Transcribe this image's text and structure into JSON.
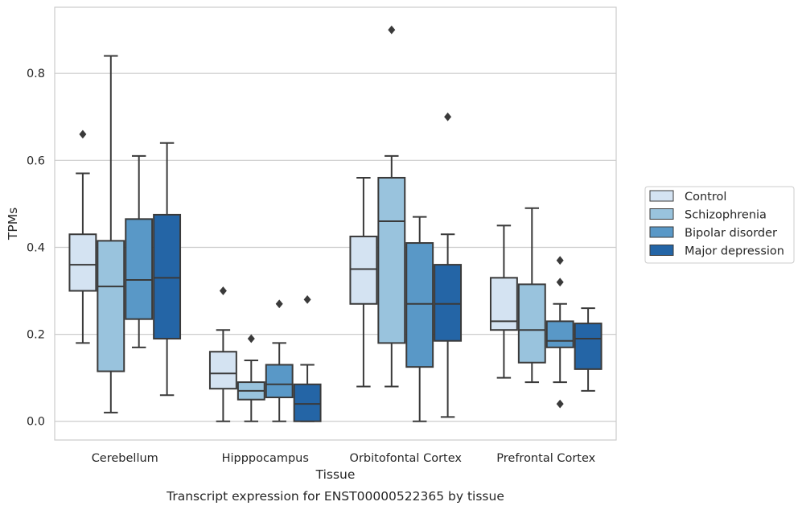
{
  "chart_data": {
    "type": "boxplot",
    "caption": "Transcript expression for ENST00000522365 by tissue",
    "xlabel": "Tissue",
    "ylabel": "TPMs",
    "ylim": [
      -0.043,
      0.952
    ],
    "yticks": [
      0.0,
      0.2,
      0.4,
      0.6,
      0.8
    ],
    "ytick_labels": [
      "0.0",
      "0.2",
      "0.4",
      "0.6",
      "0.8"
    ],
    "grid": "horizontal",
    "legend_position": "right",
    "categories": [
      "Cerebellum",
      "Hipppocampus",
      "Orbitofontal Cortex",
      "Prefrontal Cortex"
    ],
    "series": [
      {
        "name": "Control",
        "color": "#d4e3f2",
        "boxes": [
          {
            "whislo": 0.18,
            "q1": 0.3,
            "med": 0.36,
            "q3": 0.43,
            "whishi": 0.57,
            "fliers": [
              0.66
            ]
          },
          {
            "whislo": 0.0,
            "q1": 0.075,
            "med": 0.11,
            "q3": 0.16,
            "whishi": 0.21,
            "fliers": [
              0.3
            ]
          },
          {
            "whislo": 0.08,
            "q1": 0.27,
            "med": 0.35,
            "q3": 0.425,
            "whishi": 0.56,
            "fliers": []
          },
          {
            "whislo": 0.1,
            "q1": 0.21,
            "med": 0.23,
            "q3": 0.33,
            "whishi": 0.45,
            "fliers": []
          }
        ]
      },
      {
        "name": "Schizophrenia",
        "color": "#99c3dd",
        "boxes": [
          {
            "whislo": 0.02,
            "q1": 0.115,
            "med": 0.31,
            "q3": 0.415,
            "whishi": 0.84,
            "fliers": []
          },
          {
            "whislo": 0.0,
            "q1": 0.05,
            "med": 0.07,
            "q3": 0.09,
            "whishi": 0.14,
            "fliers": [
              0.19
            ]
          },
          {
            "whislo": 0.08,
            "q1": 0.18,
            "med": 0.46,
            "q3": 0.56,
            "whishi": 0.61,
            "fliers": [
              0.9
            ]
          },
          {
            "whislo": 0.09,
            "q1": 0.135,
            "med": 0.21,
            "q3": 0.315,
            "whishi": 0.49,
            "fliers": []
          }
        ]
      },
      {
        "name": "Bipolar disorder",
        "color": "#5998c7",
        "boxes": [
          {
            "whislo": 0.17,
            "q1": 0.235,
            "med": 0.325,
            "q3": 0.465,
            "whishi": 0.61,
            "fliers": []
          },
          {
            "whislo": 0.0,
            "q1": 0.055,
            "med": 0.085,
            "q3": 0.13,
            "whishi": 0.18,
            "fliers": [
              0.27
            ]
          },
          {
            "whislo": 0.0,
            "q1": 0.125,
            "med": 0.27,
            "q3": 0.41,
            "whishi": 0.47,
            "fliers": []
          },
          {
            "whislo": 0.09,
            "q1": 0.17,
            "med": 0.185,
            "q3": 0.23,
            "whishi": 0.27,
            "fliers": [
              0.32,
              0.37,
              0.04
            ]
          }
        ]
      },
      {
        "name": "Major depression",
        "color": "#2465a6",
        "boxes": [
          {
            "whislo": 0.06,
            "q1": 0.19,
            "med": 0.33,
            "q3": 0.475,
            "whishi": 0.64,
            "fliers": []
          },
          {
            "whislo": 0.0,
            "q1": 0.0,
            "med": 0.04,
            "q3": 0.085,
            "whishi": 0.13,
            "fliers": [
              0.28
            ]
          },
          {
            "whislo": 0.01,
            "q1": 0.185,
            "med": 0.27,
            "q3": 0.36,
            "whishi": 0.43,
            "fliers": [
              0.7
            ]
          },
          {
            "whislo": 0.07,
            "q1": 0.12,
            "med": 0.19,
            "q3": 0.225,
            "whishi": 0.26,
            "fliers": []
          }
        ]
      }
    ]
  }
}
